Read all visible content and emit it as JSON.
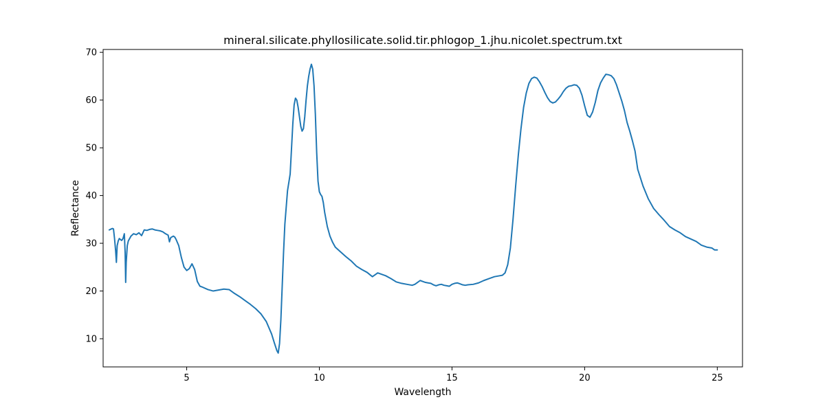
{
  "chart_data": {
    "type": "line",
    "title": "mineral.silicate.phyllosilicate.solid.tir.phlogop_1.jhu.nicolet.spectrum.txt",
    "xlabel": "Wavelength",
    "ylabel": "Reflectance",
    "xlim": [
      1.85,
      25.95
    ],
    "ylim": [
      4.1,
      70.6
    ],
    "xticks": [
      5,
      10,
      15,
      20,
      25
    ],
    "yticks": [
      10,
      20,
      30,
      40,
      50,
      60,
      70
    ],
    "grid": false,
    "legend": "none",
    "series": [
      {
        "color": "#1f77b4",
        "x": [
          2.08,
          2.12,
          2.16,
          2.2,
          2.24,
          2.28,
          2.32,
          2.35,
          2.38,
          2.42,
          2.46,
          2.5,
          2.55,
          2.6,
          2.65,
          2.68,
          2.7,
          2.72,
          2.76,
          2.8,
          2.9,
          3.0,
          3.1,
          3.2,
          3.3,
          3.4,
          3.5,
          3.6,
          3.7,
          3.8,
          3.9,
          4.0,
          4.1,
          4.2,
          4.3,
          4.35,
          4.4,
          4.5,
          4.55,
          4.6,
          4.7,
          4.8,
          4.9,
          5.0,
          5.1,
          5.2,
          5.3,
          5.4,
          5.5,
          5.6,
          5.8,
          6.0,
          6.2,
          6.4,
          6.6,
          6.8,
          7.0,
          7.2,
          7.4,
          7.6,
          7.8,
          8.0,
          8.2,
          8.3,
          8.4,
          8.45,
          8.5,
          8.55,
          8.6,
          8.65,
          8.7,
          8.8,
          8.9,
          9.0,
          9.05,
          9.1,
          9.15,
          9.2,
          9.25,
          9.3,
          9.35,
          9.4,
          9.45,
          9.5,
          9.55,
          9.6,
          9.65,
          9.7,
          9.75,
          9.8,
          9.85,
          9.9,
          9.95,
          10.0,
          10.05,
          10.1,
          10.15,
          10.2,
          10.3,
          10.4,
          10.5,
          10.6,
          10.8,
          11.0,
          11.2,
          11.4,
          11.6,
          11.8,
          12.0,
          12.1,
          12.2,
          12.3,
          12.5,
          12.7,
          12.9,
          13.1,
          13.3,
          13.5,
          13.6,
          13.7,
          13.8,
          13.9,
          14.0,
          14.1,
          14.2,
          14.3,
          14.4,
          14.5,
          14.6,
          14.7,
          14.8,
          14.9,
          15.0,
          15.1,
          15.2,
          15.3,
          15.4,
          15.5,
          15.6,
          15.8,
          16.0,
          16.2,
          16.4,
          16.6,
          16.8,
          16.9,
          17.0,
          17.1,
          17.2,
          17.3,
          17.4,
          17.5,
          17.6,
          17.7,
          17.8,
          17.9,
          18.0,
          18.1,
          18.2,
          18.3,
          18.4,
          18.5,
          18.6,
          18.7,
          18.8,
          18.9,
          19.0,
          19.1,
          19.2,
          19.3,
          19.4,
          19.5,
          19.6,
          19.7,
          19.8,
          19.9,
          20.0,
          20.1,
          20.2,
          20.3,
          20.4,
          20.5,
          20.6,
          20.7,
          20.8,
          20.9,
          21.0,
          21.1,
          21.2,
          21.3,
          21.4,
          21.5,
          21.6,
          21.7,
          21.8,
          21.9,
          22.0,
          22.2,
          22.4,
          22.6,
          22.8,
          23.0,
          23.2,
          23.4,
          23.6,
          23.8,
          24.0,
          24.2,
          24.4,
          24.6,
          24.8,
          24.9,
          25.0
        ],
        "values": [
          32.8,
          32.9,
          33.0,
          33.1,
          33.0,
          31.0,
          28.5,
          26.0,
          29.5,
          30.5,
          31.0,
          30.8,
          30.6,
          31.0,
          32.0,
          28.0,
          21.8,
          26.0,
          29.5,
          30.5,
          31.5,
          32.0,
          31.8,
          32.2,
          31.6,
          32.8,
          32.7,
          32.9,
          33.0,
          32.8,
          32.7,
          32.6,
          32.4,
          32.0,
          31.7,
          30.3,
          31.2,
          31.5,
          31.3,
          30.8,
          29.5,
          27.0,
          25.0,
          24.3,
          24.7,
          25.7,
          24.5,
          22.0,
          21.0,
          20.8,
          20.3,
          20.0,
          20.2,
          20.4,
          20.3,
          19.5,
          18.8,
          18.0,
          17.2,
          16.3,
          15.2,
          13.6,
          11.0,
          9.2,
          7.5,
          7.0,
          9.0,
          14.0,
          21.0,
          28.0,
          34.0,
          41.0,
          44.5,
          55.0,
          59.0,
          60.4,
          60.0,
          58.5,
          56.5,
          54.5,
          53.5,
          54.0,
          56.5,
          60.0,
          63.0,
          65.0,
          66.5,
          67.5,
          66.5,
          63.0,
          57.0,
          49.0,
          43.0,
          40.8,
          40.2,
          39.8,
          38.5,
          36.5,
          33.5,
          31.5,
          30.2,
          29.2,
          28.2,
          27.2,
          26.3,
          25.2,
          24.5,
          23.9,
          23.0,
          23.4,
          23.8,
          23.6,
          23.2,
          22.6,
          21.9,
          21.6,
          21.4,
          21.2,
          21.4,
          21.8,
          22.2,
          22.0,
          21.8,
          21.7,
          21.6,
          21.3,
          21.1,
          21.3,
          21.4,
          21.2,
          21.1,
          21.0,
          21.4,
          21.6,
          21.7,
          21.5,
          21.3,
          21.2,
          21.3,
          21.4,
          21.7,
          22.2,
          22.6,
          23.0,
          23.2,
          23.3,
          23.8,
          25.5,
          29.0,
          35.0,
          42.0,
          48.5,
          54.0,
          58.5,
          61.5,
          63.5,
          64.5,
          64.8,
          64.6,
          63.8,
          62.8,
          61.6,
          60.5,
          59.7,
          59.4,
          59.6,
          60.2,
          60.9,
          61.8,
          62.5,
          62.9,
          63.0,
          63.2,
          63.1,
          62.5,
          61.0,
          58.8,
          56.8,
          56.4,
          57.5,
          59.5,
          62.0,
          63.6,
          64.6,
          65.4,
          65.3,
          65.1,
          64.5,
          63.2,
          61.5,
          59.8,
          57.8,
          55.3,
          53.5,
          51.5,
          49.3,
          45.5,
          42.0,
          39.3,
          37.3,
          36.0,
          34.8,
          33.5,
          32.8,
          32.2,
          31.4,
          30.9,
          30.4,
          29.6,
          29.2,
          29.0,
          28.6,
          28.6
        ]
      }
    ]
  }
}
